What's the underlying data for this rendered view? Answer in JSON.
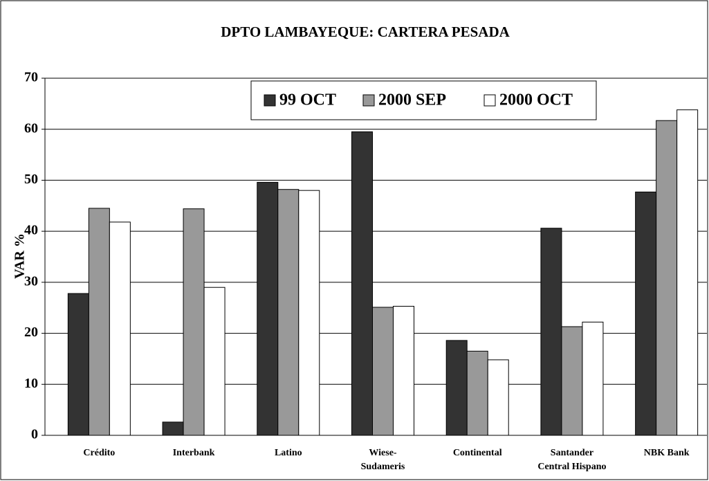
{
  "chart_data": {
    "type": "bar",
    "title": "DPTO LAMBAYEQUE: CARTERA PESADA",
    "y_label": "VAR %",
    "categories": [
      "Crédito",
      "Interbank",
      "Latino",
      "Wiese-\nSudameris",
      "Continental",
      "Santander\nCentral Hispano",
      "NBK Bank"
    ],
    "series": [
      {
        "name": "99 OCT",
        "color": "#333333",
        "values": [
          27.8,
          2.6,
          49.6,
          59.5,
          18.6,
          40.6,
          47.7
        ]
      },
      {
        "name": "2000 SEP",
        "color": "#999999",
        "values": [
          44.5,
          44.4,
          48.2,
          25.1,
          16.5,
          21.3,
          61.7
        ]
      },
      {
        "name": "2000 OCT",
        "color": "#ffffff",
        "values": [
          41.8,
          29.0,
          48.0,
          25.3,
          14.8,
          22.2,
          63.8
        ]
      }
    ],
    "ylim": [
      0,
      70
    ],
    "yticks": [
      0,
      10,
      20,
      30,
      40,
      50,
      60,
      70
    ],
    "grid": true,
    "legend": "top"
  }
}
